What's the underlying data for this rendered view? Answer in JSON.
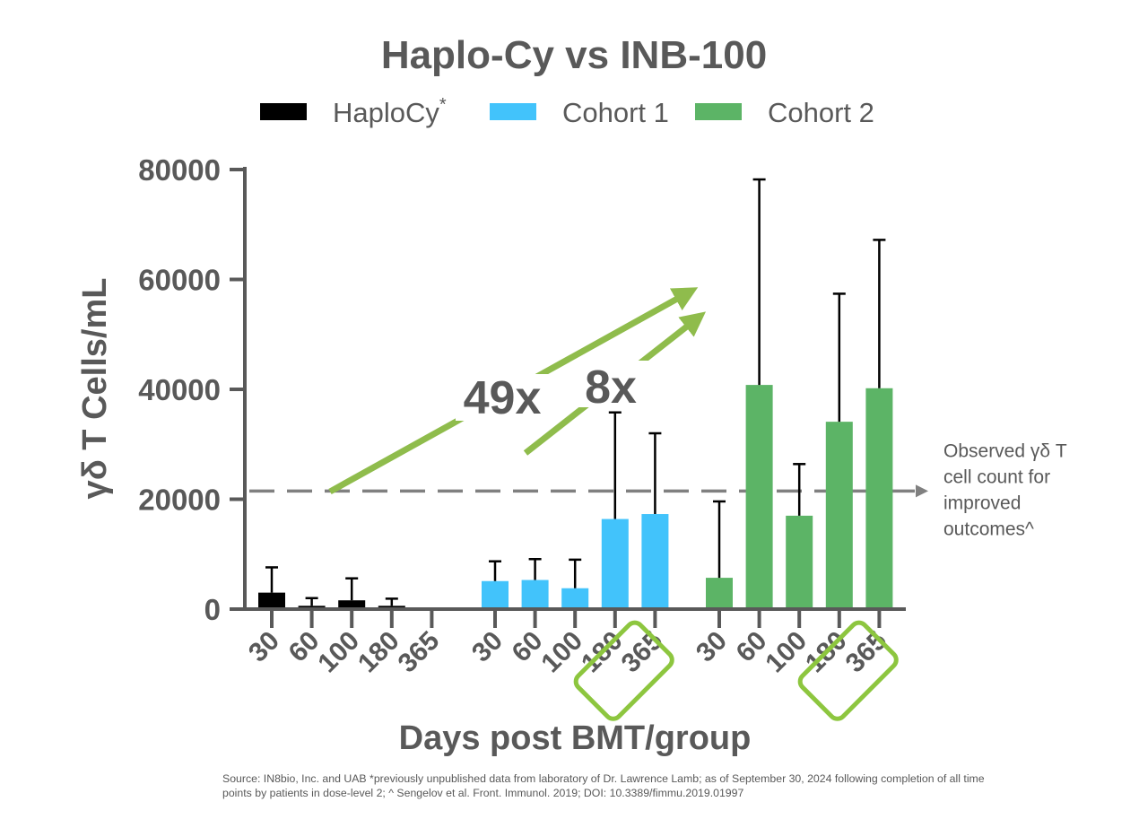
{
  "chart_data": {
    "type": "bar",
    "title": "Haplo-Cy vs INB-100",
    "xlabel": "Days post BMT/group",
    "ylabel": "γδ T Cells/mL",
    "ylim": [
      0,
      80000
    ],
    "yticks": [
      "80000",
      "60000",
      "40000",
      "20000",
      "0"
    ],
    "legend": [
      {
        "label": "HaploCy",
        "superscript": "*",
        "color": "#000000"
      },
      {
        "label": "Cohort 1",
        "superscript": "",
        "color": "#42c3fb"
      },
      {
        "label": "Cohort 2",
        "superscript": "",
        "color": "#5cb466"
      }
    ],
    "categories": [
      "30",
      "60",
      "100",
      "180",
      "365"
    ],
    "series": [
      {
        "name": "HaploCy",
        "color": "#000000",
        "values": [
          3000,
          600,
          1600,
          600,
          null
        ],
        "error_upper": [
          7600,
          2000,
          5600,
          1900,
          null
        ]
      },
      {
        "name": "Cohort 1",
        "color": "#42c3fb",
        "values": [
          5100,
          5300,
          3800,
          16400,
          17300
        ],
        "error_upper": [
          8700,
          9100,
          9000,
          35800,
          32000
        ]
      },
      {
        "name": "Cohort 2",
        "color": "#5cb466",
        "values": [
          5700,
          40800,
          17000,
          34100,
          40200
        ],
        "error_upper": [
          19600,
          78200,
          26400,
          57400,
          67200
        ]
      }
    ],
    "highlighted_categories": [
      {
        "series": "Cohort 1",
        "category": "365",
        "color": "#8dc63f"
      },
      {
        "series": "Cohort 2",
        "category": "365",
        "color": "#8dc63f"
      }
    ],
    "reference_line": {
      "value": 21500,
      "label": [
        "Observed γδ T",
        "cell count for",
        "improved",
        "outcomes^"
      ]
    },
    "annotations": [
      {
        "text": "49x",
        "arrow_color": "#8fbc4c"
      },
      {
        "text": "8x",
        "arrow_color": "#8fbc4c"
      }
    ]
  },
  "source_note": "Source: IN8bio, Inc. and UAB *previously unpublished data from laboratory of Dr. Lawrence Lamb; as of September 30, 2024 following completion of all time points by patients in dose-level 2; ^ Sengelov et al. Front. Immunol. 2019; DOI: 10.3389/fimmu.2019.01997"
}
